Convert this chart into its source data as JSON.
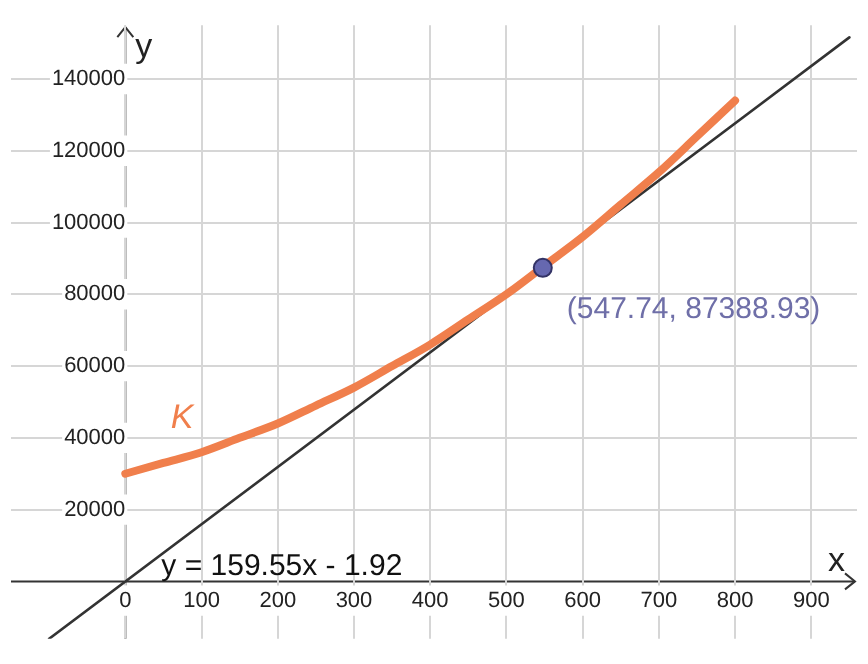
{
  "chart_data": {
    "type": "line",
    "xlabel": "x",
    "ylabel": "y",
    "xlim": [
      -150,
      960
    ],
    "ylim": [
      -16000,
      155000
    ],
    "xticks": [
      0,
      100,
      200,
      300,
      400,
      500,
      600,
      700,
      800,
      900
    ],
    "yticks": [
      20000,
      40000,
      60000,
      80000,
      100000,
      120000,
      140000
    ],
    "grid": true,
    "legend": false,
    "marker": "none",
    "line_style": "solid",
    "series": [
      {
        "name": "K",
        "color": "#f07f4c",
        "x": [
          0,
          50,
          100,
          150,
          200,
          250,
          300,
          350,
          400,
          450,
          500,
          550,
          600,
          650,
          700,
          750,
          800
        ],
        "values": [
          30000,
          33000,
          36000,
          40000,
          44000,
          49000,
          54000,
          60000,
          66000,
          73000,
          80000,
          88000,
          96000,
          105000,
          114000,
          124000,
          134000
        ]
      },
      {
        "name": "y = 159.55x - 1.92",
        "color": "#333333",
        "x": [
          -100,
          950
        ],
        "values": [
          -16000,
          151600
        ]
      },
      {
        "type": "scatter",
        "marker": "circle",
        "color": "#6668b0",
        "x": [
          547.74
        ],
        "values": [
          87388.93
        ]
      }
    ],
    "annotations": [
      {
        "text": "(547.74, 87388.93)",
        "x": 547.74,
        "y": 87388.93
      }
    ]
  }
}
